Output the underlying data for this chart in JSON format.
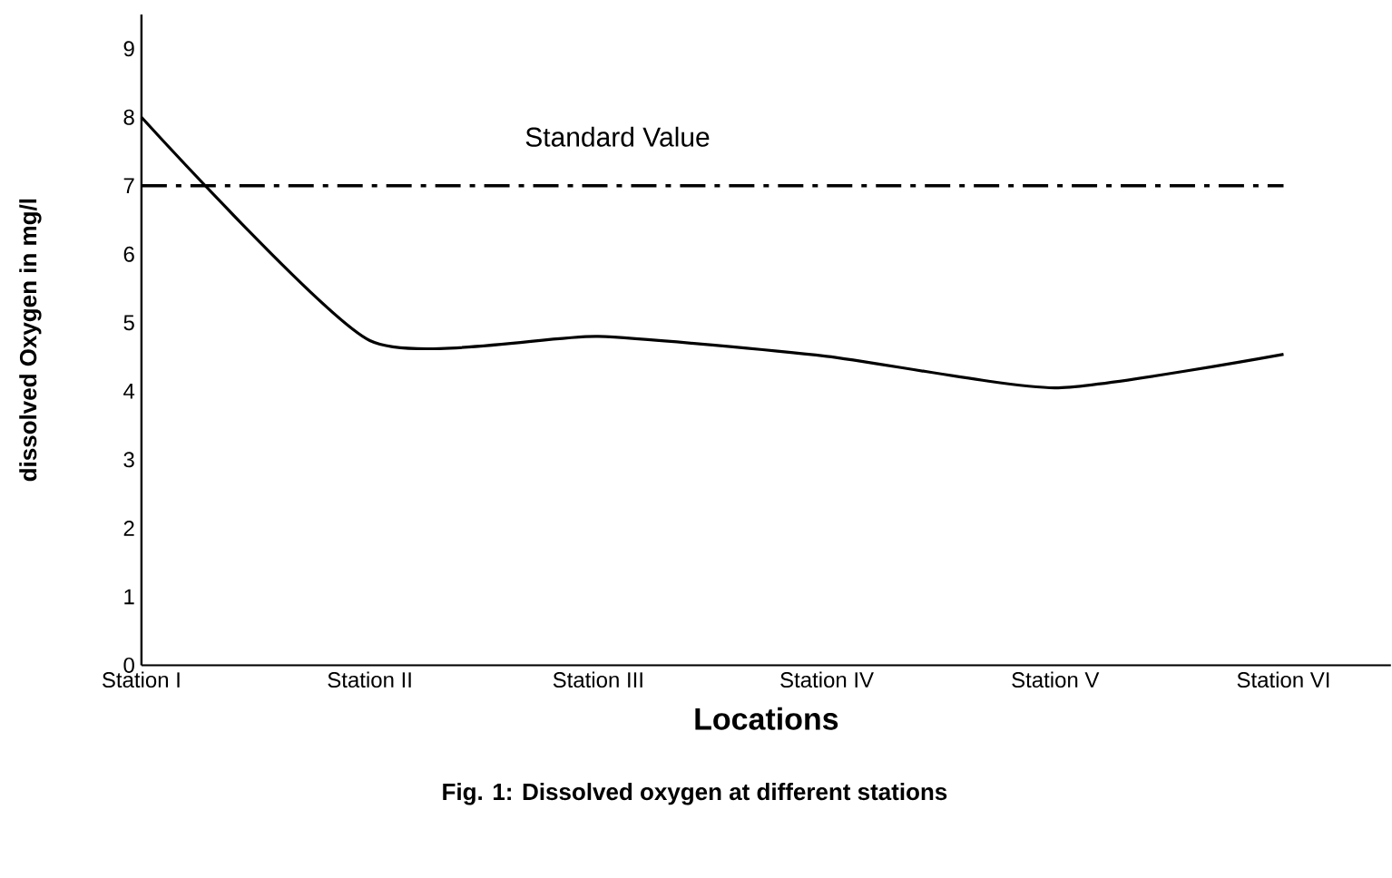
{
  "chart_data": {
    "type": "line",
    "xlabel": "Locations",
    "ylabel": "dissolved Oxygen in mg/l",
    "categories": [
      "Station I",
      "Station II",
      "Station III",
      "Station IV",
      "Station V",
      "Station VI"
    ],
    "series": [
      {
        "color": "#000000",
        "values": [
          8.0,
          4.74,
          4.8,
          4.51,
          4.05,
          4.54
        ]
      }
    ],
    "ylim": [
      0,
      9.5
    ],
    "yticks": [
      0,
      1,
      2,
      3,
      4,
      5,
      6,
      7,
      8,
      9
    ],
    "grid": false,
    "marker": "none",
    "line_style": "solid",
    "ref_lines": [
      {
        "axis": "y",
        "value": 7,
        "label": "Standard Value",
        "color": "#000000",
        "line_style": "dashdot"
      }
    ],
    "annotations": [
      "Fig. 1: Dissolved oxygen at different stations"
    ]
  }
}
